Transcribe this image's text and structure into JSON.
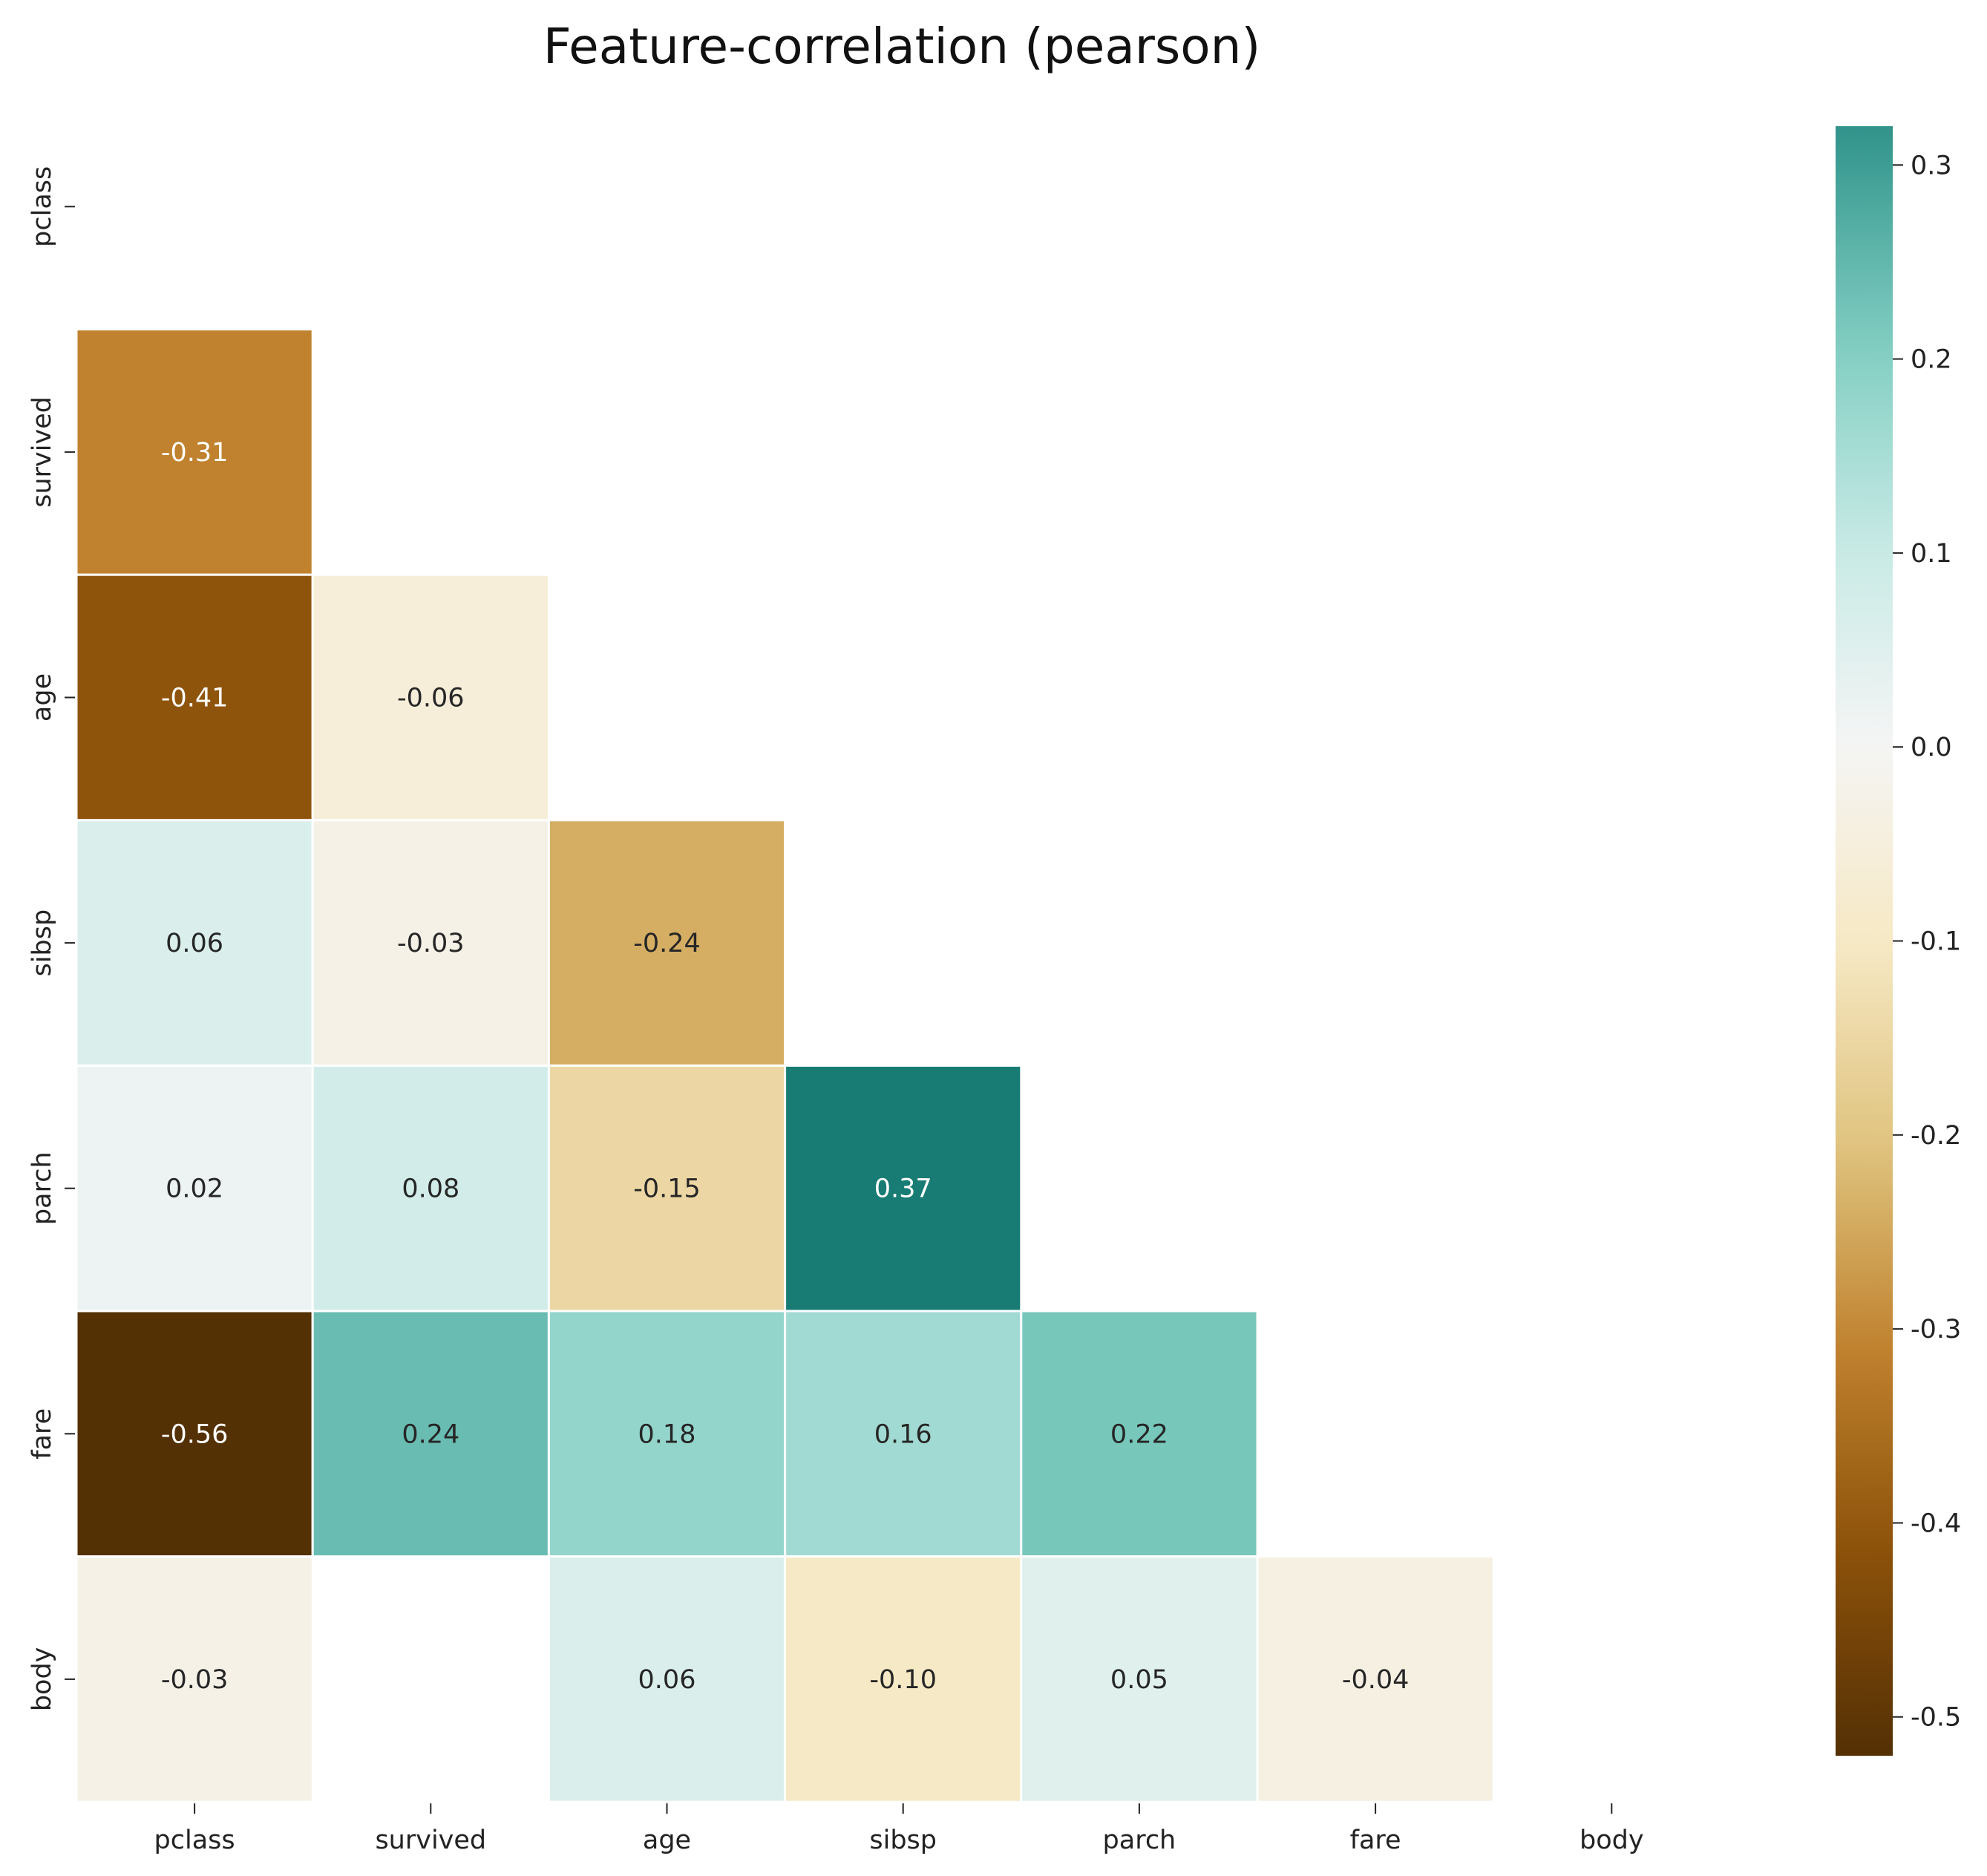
{
  "chart_data": {
    "type": "heatmap",
    "title": "Feature-correlation (pearson)",
    "variables": [
      "pclass",
      "survived",
      "age",
      "sibsp",
      "parch",
      "fare",
      "body"
    ],
    "mask": "upper-triangle-including-diagonal",
    "colormap": "BrBG",
    "value_format": "2 decimals",
    "cells": [
      {
        "row": "survived",
        "col": "pclass",
        "value": -0.31
      },
      {
        "row": "age",
        "col": "pclass",
        "value": -0.41
      },
      {
        "row": "age",
        "col": "survived",
        "value": -0.06
      },
      {
        "row": "sibsp",
        "col": "pclass",
        "value": 0.06
      },
      {
        "row": "sibsp",
        "col": "survived",
        "value": -0.03
      },
      {
        "row": "sibsp",
        "col": "age",
        "value": -0.24
      },
      {
        "row": "parch",
        "col": "pclass",
        "value": 0.02
      },
      {
        "row": "parch",
        "col": "survived",
        "value": 0.08
      },
      {
        "row": "parch",
        "col": "age",
        "value": -0.15
      },
      {
        "row": "parch",
        "col": "sibsp",
        "value": 0.37
      },
      {
        "row": "fare",
        "col": "pclass",
        "value": -0.56
      },
      {
        "row": "fare",
        "col": "survived",
        "value": 0.24
      },
      {
        "row": "fare",
        "col": "age",
        "value": 0.18
      },
      {
        "row": "fare",
        "col": "sibsp",
        "value": 0.16
      },
      {
        "row": "fare",
        "col": "parch",
        "value": 0.22
      },
      {
        "row": "body",
        "col": "pclass",
        "value": -0.03
      },
      {
        "row": "body",
        "col": "survived",
        "value": null
      },
      {
        "row": "body",
        "col": "age",
        "value": 0.06
      },
      {
        "row": "body",
        "col": "sibsp",
        "value": -0.1
      },
      {
        "row": "body",
        "col": "parch",
        "value": 0.05
      },
      {
        "row": "body",
        "col": "fare",
        "value": -0.04
      }
    ],
    "colorbar": {
      "range": [
        -0.52,
        0.32
      ],
      "ticks": [
        -0.5,
        -0.4,
        -0.3,
        -0.2,
        -0.1,
        0.0,
        0.1,
        0.2,
        0.3
      ],
      "tick_labels": [
        "-0.5",
        "-0.4",
        "-0.3",
        "-0.2",
        "-0.1",
        "0.0",
        "0.1",
        "0.2",
        "0.3"
      ]
    }
  }
}
